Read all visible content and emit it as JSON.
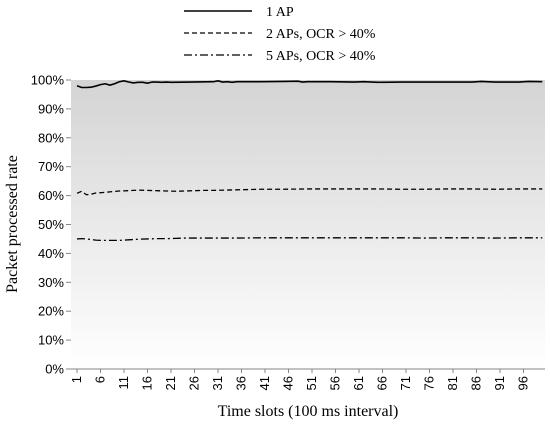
{
  "chart_data": {
    "type": "line",
    "xlabel": "Time slots (100 ms interval)",
    "ylabel": "Packet processed rate",
    "ylim": [
      0,
      100
    ],
    "yticks": [
      "0%",
      "10%",
      "20%",
      "30%",
      "40%",
      "50%",
      "60%",
      "70%",
      "80%",
      "90%",
      "100%"
    ],
    "xticks": [
      "1",
      "6",
      "11",
      "16",
      "21",
      "26",
      "31",
      "36",
      "41",
      "46",
      "51",
      "56",
      "61",
      "66",
      "71",
      "76",
      "81",
      "86",
      "91",
      "96"
    ],
    "xlim": [
      1,
      100
    ],
    "legend_position": "top",
    "background": "gradient grey to white",
    "series": [
      {
        "name": "1 AP",
        "style": "solid",
        "x": [
          1,
          2,
          3,
          4,
          5,
          6,
          7,
          8,
          9,
          10,
          11,
          12,
          13,
          14,
          15,
          16,
          17,
          18,
          19,
          20,
          21,
          25,
          30,
          31,
          32,
          33,
          34,
          35,
          40,
          45,
          48,
          49,
          50,
          55,
          60,
          62,
          65,
          70,
          75,
          80,
          85,
          87,
          90,
          95,
          97,
          100
        ],
        "values": [
          98.0,
          97.4,
          97.4,
          97.5,
          97.9,
          98.4,
          98.7,
          98.2,
          98.7,
          99.4,
          99.7,
          99.3,
          99.0,
          99.2,
          99.2,
          98.9,
          99.3,
          99.3,
          99.2,
          99.3,
          99.2,
          99.3,
          99.4,
          99.7,
          99.3,
          99.4,
          99.2,
          99.4,
          99.4,
          99.5,
          99.6,
          99.3,
          99.4,
          99.4,
          99.3,
          99.4,
          99.2,
          99.3,
          99.3,
          99.3,
          99.3,
          99.5,
          99.3,
          99.3,
          99.5,
          99.4
        ]
      },
      {
        "name": "2 APs, OCR > 40%",
        "style": "dashed",
        "x": [
          1,
          2,
          3,
          4,
          5,
          6,
          8,
          10,
          12,
          14,
          16,
          18,
          20,
          22,
          24,
          26,
          28,
          30,
          35,
          40,
          45,
          50,
          55,
          60,
          65,
          70,
          75,
          80,
          85,
          90,
          95,
          100
        ],
        "values": [
          60.8,
          61.5,
          60.3,
          60.5,
          60.9,
          61.0,
          61.3,
          61.6,
          61.7,
          61.9,
          61.8,
          61.7,
          61.6,
          61.5,
          61.6,
          61.7,
          61.8,
          61.8,
          62.0,
          62.2,
          62.2,
          62.3,
          62.3,
          62.3,
          62.3,
          62.2,
          62.2,
          62.3,
          62.3,
          62.2,
          62.3,
          62.3
        ]
      },
      {
        "name": "5 APs, OCR > 40%",
        "style": "dashdot",
        "x": [
          1,
          2,
          3,
          4,
          5,
          6,
          8,
          10,
          12,
          14,
          16,
          18,
          20,
          22,
          24,
          26,
          28,
          30,
          35,
          40,
          45,
          50,
          55,
          60,
          65,
          70,
          75,
          80,
          85,
          90,
          95,
          100
        ],
        "values": [
          45.0,
          45.1,
          45.0,
          44.8,
          44.6,
          44.5,
          44.5,
          44.5,
          44.7,
          44.9,
          45.0,
          45.1,
          45.1,
          45.2,
          45.3,
          45.3,
          45.3,
          45.3,
          45.3,
          45.4,
          45.4,
          45.4,
          45.4,
          45.4,
          45.4,
          45.4,
          45.3,
          45.4,
          45.4,
          45.3,
          45.4,
          45.4
        ]
      }
    ]
  }
}
